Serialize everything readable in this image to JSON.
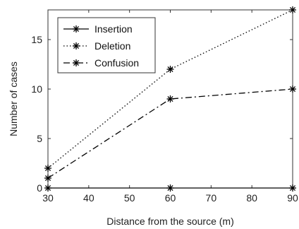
{
  "chart_data": {
    "type": "line",
    "title": "",
    "xlabel": "Distance from the source (m)",
    "ylabel": "Number of cases",
    "xlim": [
      30,
      90
    ],
    "ylim": [
      0,
      18
    ],
    "xticks": [
      30,
      40,
      50,
      60,
      70,
      80,
      90
    ],
    "yticks": [
      0,
      5,
      10,
      15
    ],
    "grid": false,
    "legend_position": "top-left",
    "marker": "asterisk",
    "series": [
      {
        "name": "Insertion",
        "style": "solid",
        "color": "#000000",
        "x": [
          30,
          60,
          90
        ],
        "y": [
          0,
          0,
          0
        ]
      },
      {
        "name": "Deletion",
        "style": "dotted",
        "color": "#000000",
        "x": [
          30,
          60,
          90
        ],
        "y": [
          2,
          12,
          18
        ]
      },
      {
        "name": "Confusion",
        "style": "dashdot",
        "color": "#000000",
        "x": [
          30,
          60,
          90
        ],
        "y": [
          1,
          9,
          10
        ]
      }
    ]
  }
}
